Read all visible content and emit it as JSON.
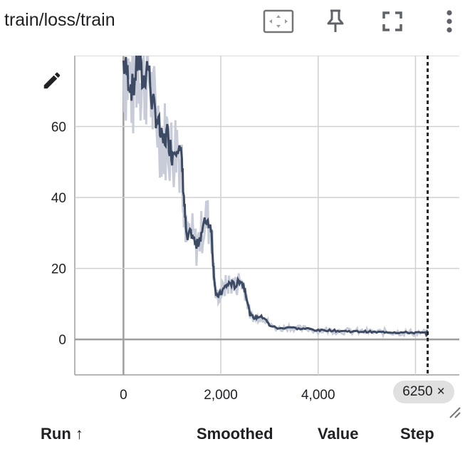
{
  "header": {
    "title": "train/loss/train",
    "actions": [
      {
        "name": "fit-domain-icon"
      },
      {
        "name": "pin-icon"
      },
      {
        "name": "fullscreen-icon"
      },
      {
        "name": "more-vert-icon"
      }
    ]
  },
  "chart_data": {
    "type": "line",
    "title": "",
    "xlabel": "",
    "ylabel": "",
    "xlim": [
      -1000,
      6900
    ],
    "ylim": [
      -10,
      80
    ],
    "x_ticks": [
      "0",
      "2,000",
      "4,000"
    ],
    "x_tick_values": [
      0,
      2000,
      4000
    ],
    "y_ticks": [
      "0",
      "20",
      "40",
      "60"
    ],
    "y_tick_values": [
      0,
      20,
      40,
      60
    ],
    "grid": true,
    "series": [
      {
        "values": [
          [
            0,
            78
          ],
          [
            100,
            74
          ],
          [
            200,
            70
          ],
          [
            300,
            80
          ],
          [
            400,
            72
          ],
          [
            500,
            78
          ],
          [
            600,
            66
          ],
          [
            700,
            62
          ],
          [
            800,
            55
          ],
          [
            900,
            58
          ],
          [
            1000,
            52
          ],
          [
            1100,
            56
          ],
          [
            1200,
            50
          ],
          [
            1250,
            38
          ],
          [
            1300,
            28
          ],
          [
            1400,
            30
          ],
          [
            1500,
            26
          ],
          [
            1600,
            30
          ],
          [
            1700,
            34
          ],
          [
            1800,
            32
          ],
          [
            1850,
            20
          ],
          [
            1900,
            12
          ],
          [
            2000,
            13
          ],
          [
            2100,
            15
          ],
          [
            2200,
            16
          ],
          [
            2300,
            15
          ],
          [
            2400,
            17
          ],
          [
            2500,
            14
          ],
          [
            2600,
            7
          ],
          [
            2700,
            6
          ],
          [
            2800,
            6.5
          ],
          [
            2900,
            6
          ],
          [
            3000,
            4
          ],
          [
            3200,
            3
          ],
          [
            3400,
            3.5
          ],
          [
            3600,
            3
          ],
          [
            3800,
            3
          ],
          [
            4000,
            2.5
          ],
          [
            4200,
            2.6
          ],
          [
            4400,
            2.4
          ],
          [
            4600,
            2.3
          ],
          [
            4800,
            2.2
          ],
          [
            5000,
            2.2
          ],
          [
            5200,
            2.0
          ],
          [
            5400,
            2.1
          ],
          [
            5600,
            2.0
          ],
          [
            5800,
            1.9
          ],
          [
            6000,
            1.9
          ],
          [
            6200,
            1.8
          ],
          [
            6250,
            1.8
          ]
        ]
      }
    ],
    "cursor_step": 6250
  },
  "cursor": {
    "label": "6250",
    "close_label": "×"
  },
  "columns": {
    "run": "Run ↑",
    "smoothed": "Smoothed",
    "value": "Value",
    "step": "Step"
  },
  "colors": {
    "line": "#3c4a64",
    "raw": "#c7ccd8",
    "grid": "#d0d0d0",
    "axis": "#9e9e9e"
  }
}
